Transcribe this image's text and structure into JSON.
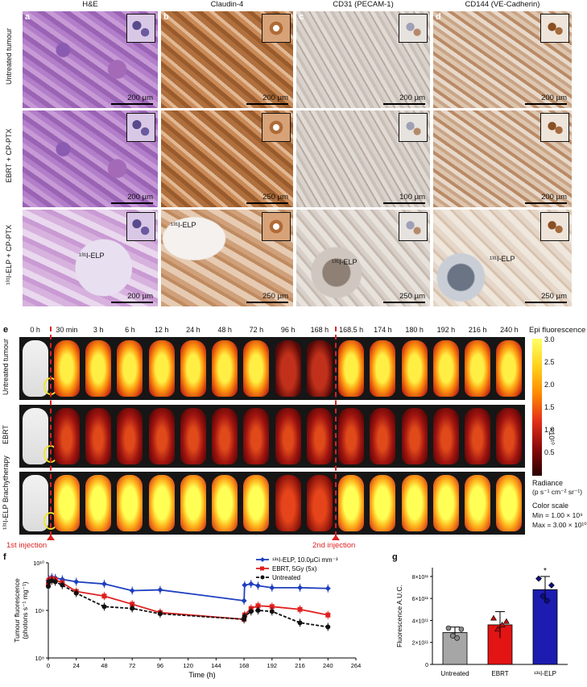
{
  "histology": {
    "columns": [
      {
        "letter": "a",
        "title": "H&E"
      },
      {
        "letter": "b",
        "title": "Claudin-4"
      },
      {
        "letter": "c",
        "title": "CD31 (PECAM-1)"
      },
      {
        "letter": "d",
        "title": "CD144 (VE-Cadherin)"
      }
    ],
    "rows": [
      "Untreated tumour",
      "EBRT + CP-PTX",
      "¹³¹I-ELP + CP-PTX"
    ],
    "scale_bars": [
      [
        "200 µm",
        "200 µm",
        "200 µm",
        "200 µm"
      ],
      [
        "200 µm",
        "250 µm",
        "100 µm",
        "200 µm"
      ],
      [
        "200 µm",
        "250 µm",
        "250 µm",
        "250 µm"
      ]
    ],
    "elp_labels": [
      "¹³¹I-ELP",
      "¹³¹I-ELP",
      "¹³¹I-ELP",
      "¹³¹I-ELP"
    ]
  },
  "imaging": {
    "letter": "e",
    "timepoints": [
      "0 h",
      "30 min",
      "3 h",
      "6 h",
      "12 h",
      "24 h",
      "48 h",
      "72 h",
      "96 h",
      "168 h",
      "168.5 h",
      "174 h",
      "180 h",
      "192 h",
      "216 h",
      "240 h"
    ],
    "rows": [
      "Untreated tumour",
      "EBRT",
      "¹³¹I-ELP Brachytherapy"
    ],
    "injection_1": "1st injection",
    "injection_2": "2nd injection",
    "colorbar": {
      "title": "Epi fluorescence",
      "ticks": [
        "3.0",
        "2.5",
        "2.0",
        "1.5",
        "1.0",
        "0.5"
      ],
      "exponent": "×10¹⁰",
      "unit_line1": "Radiance",
      "unit_line2": "(p s⁻¹ cm⁻² sr⁻¹)",
      "scale_title": "Color scale",
      "min": "Min = 1.00 × 10⁹",
      "max": "Max = 3.00 × 10¹⁰",
      "colors": [
        "#ffff66",
        "#ffd21a",
        "#ff8a00",
        "#e3301a",
        "#8a0a0a",
        "#2a0000"
      ]
    }
  },
  "chart_data": [
    {
      "type": "line",
      "panel": "f",
      "xlabel": "Time (h)",
      "ylabel": "Tumour fluorescence (photons s⁻¹ mg⁻¹)",
      "xticks": [
        0,
        24,
        48,
        72,
        96,
        120,
        144,
        168,
        192,
        216,
        240,
        264
      ],
      "yticks": [
        "10⁸",
        "10⁹",
        "10¹⁰"
      ],
      "log_y": true,
      "xlim": [
        0,
        264
      ],
      "ylim": [
        100000000.0,
        10000000000.0
      ],
      "series": [
        {
          "name": "¹³¹I-ELP, 10.0µCi mm⁻³",
          "color": "#1f3fbf",
          "marker": "diamond",
          "x": [
            0,
            0.5,
            3,
            6,
            12,
            24,
            48,
            72,
            96,
            168,
            168.5,
            174,
            180,
            192,
            216,
            240
          ],
          "y": [
            4200000000.0,
            4500000000.0,
            5000000000.0,
            4800000000.0,
            4500000000.0,
            4000000000.0,
            3600000000.0,
            2600000000.0,
            2700000000.0,
            1600000000.0,
            3400000000.0,
            3600000000.0,
            3300000000.0,
            3000000000.0,
            3000000000.0,
            2900000000.0
          ]
        },
        {
          "name": "EBRT, 5Gy (5x)",
          "color": "#e02020",
          "marker": "square",
          "x": [
            0,
            0.5,
            3,
            6,
            12,
            24,
            48,
            72,
            96,
            168,
            168.5,
            174,
            180,
            192,
            216,
            240
          ],
          "y": [
            3500000000.0,
            4300000000.0,
            4600000000.0,
            4400000000.0,
            3800000000.0,
            2500000000.0,
            2000000000.0,
            1350000000.0,
            900000000.0,
            650000000.0,
            800000000.0,
            1100000000.0,
            1250000000.0,
            1200000000.0,
            1050000000.0,
            800000000.0
          ]
        },
        {
          "name": "Untreated",
          "color": "#111111",
          "marker": "circle",
          "x": [
            0,
            0.5,
            3,
            6,
            12,
            24,
            48,
            72,
            96,
            168,
            168.5,
            174,
            180,
            192,
            216,
            240
          ],
          "y": [
            3200000000.0,
            4000000000.0,
            4200000000.0,
            4000000000.0,
            3400000000.0,
            2300000000.0,
            1200000000.0,
            1100000000.0,
            850000000.0,
            650000000.0,
            750000000.0,
            950000000.0,
            1000000000.0,
            950000000.0,
            550000000.0,
            450000000.0
          ]
        }
      ]
    },
    {
      "type": "bar",
      "panel": "g",
      "ylabel": "Fluorescence A.U.C.",
      "yticks": [
        "0",
        "2×10¹¹",
        "4×10¹¹",
        "6×10¹¹",
        "8×10¹¹"
      ],
      "ylim": [
        0,
        880000000000.0
      ],
      "categories": [
        "Untreated",
        "EBRT",
        "¹³¹I-ELP"
      ],
      "values": [
        290000000000.0,
        360000000000.0,
        680000000000.0
      ],
      "errors": [
        50000000000.0,
        120000000000.0,
        120000000000.0
      ],
      "colors": [
        "#a6a6a6",
        "#e21414",
        "#1c1cb0"
      ],
      "points": [
        [
          330000000000.0,
          260000000000.0,
          240000000000.0,
          320000000000.0
        ],
        [
          420000000000.0,
          320000000000.0,
          360000000000.0,
          390000000000.0
        ],
        [
          780000000000.0,
          620000000000.0,
          580000000000.0,
          720000000000.0
        ]
      ],
      "annotation": "*"
    }
  ]
}
